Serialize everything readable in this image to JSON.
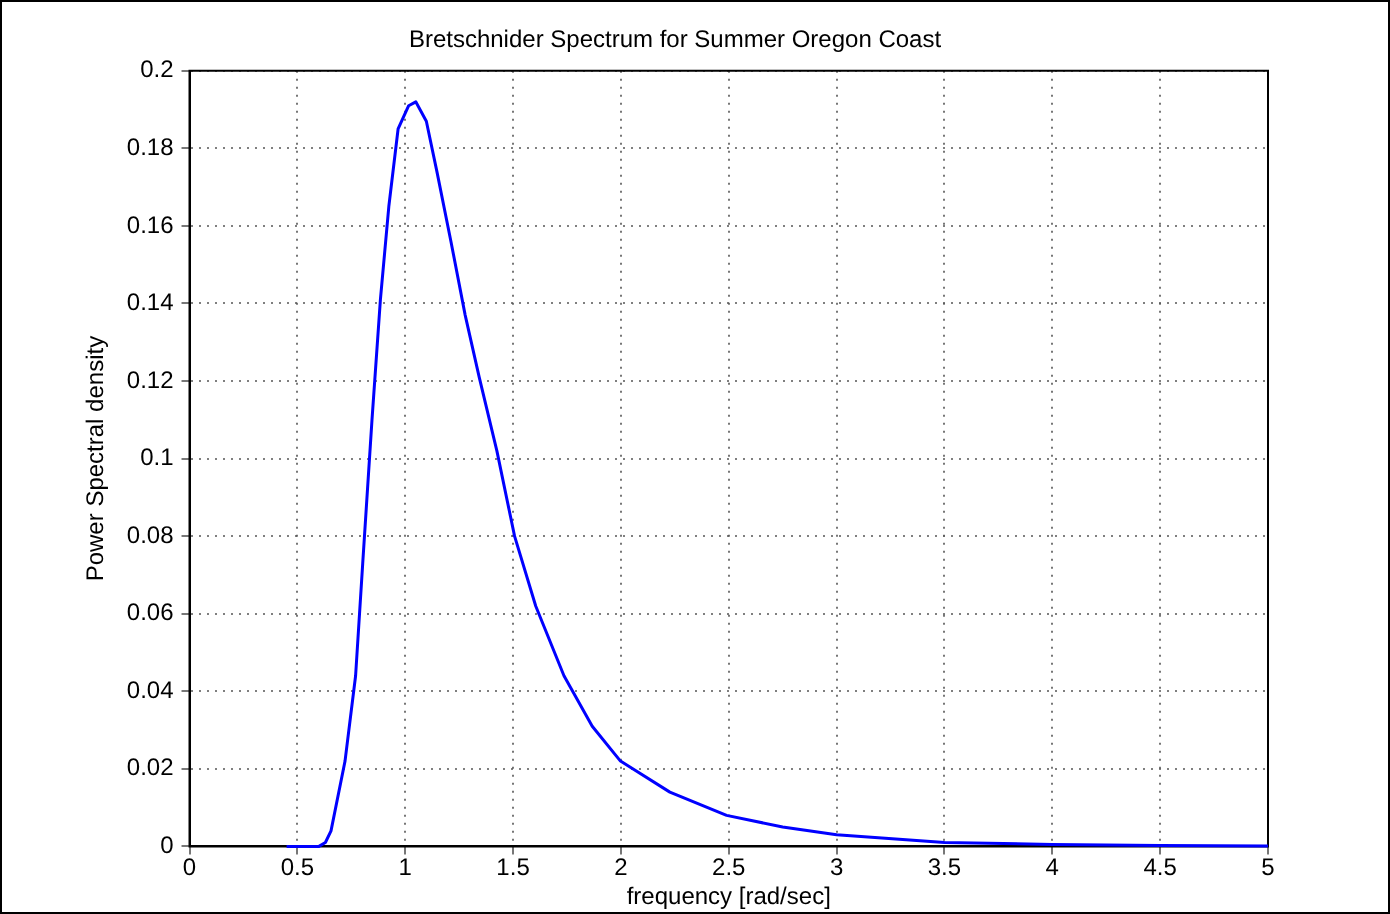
{
  "chart_data": {
    "type": "line",
    "title": "Bretschnider Spectrum for Summer Oregon Coast",
    "xlabel": "frequency [rad/sec]",
    "ylabel": "Power Spectral density",
    "x": [
      0.45,
      0.5,
      0.55,
      0.6,
      0.63,
      0.656,
      0.721,
      0.77,
      0.803,
      0.846,
      0.885,
      0.924,
      0.967,
      1.016,
      1.049,
      1.098,
      1.147,
      1.212,
      1.278,
      1.343,
      1.425,
      1.507,
      1.605,
      1.736,
      1.867,
      1.998,
      2.227,
      2.49,
      2.75,
      3.0,
      3.5,
      4.0,
      4.5,
      5.0
    ],
    "series": [
      {
        "color": "#0000ff",
        "values": [
          0,
          0,
          0,
          0,
          0.001,
          0.004,
          0.022,
          0.044,
          0.073,
          0.11,
          0.141,
          0.165,
          0.185,
          0.191,
          0.192,
          0.187,
          0.174,
          0.156,
          0.137,
          0.121,
          0.102,
          0.08,
          0.062,
          0.044,
          0.031,
          0.022,
          0.014,
          0.008,
          0.005,
          0.003,
          0.001,
          0.0005,
          0.0002,
          0.0001
        ]
      }
    ],
    "xlim": [
      0,
      5
    ],
    "xticks": [
      0,
      0.5,
      1,
      1.5,
      2,
      2.5,
      3,
      3.5,
      4,
      4.5,
      5
    ],
    "ylim": [
      0,
      0.2
    ],
    "yticks": [
      0,
      0.02,
      0.04,
      0.06,
      0.08,
      0.1,
      0.12,
      0.14,
      0.16,
      0.18,
      0.2
    ],
    "grid": true,
    "legend": false,
    "marker": "none",
    "line_style": "solid"
  }
}
